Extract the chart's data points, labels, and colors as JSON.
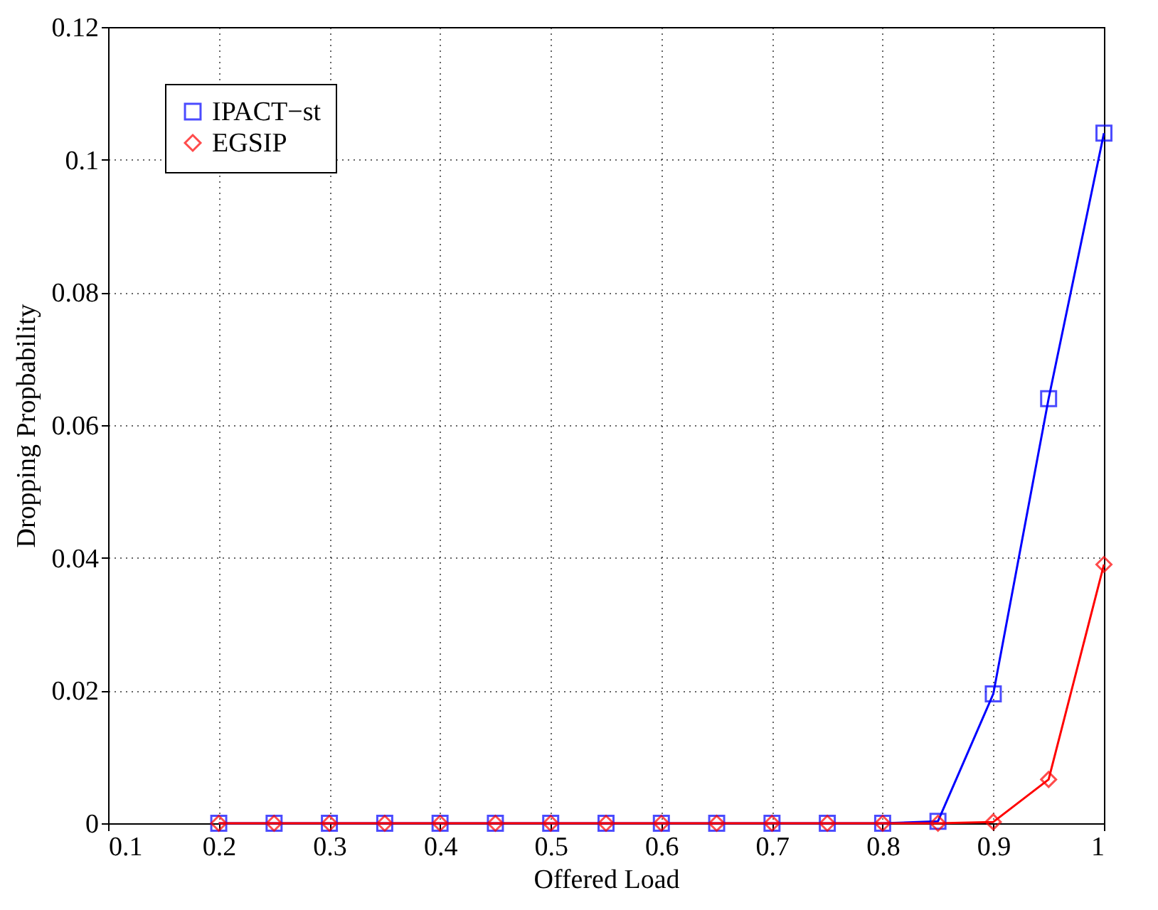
{
  "chart_data": {
    "type": "line",
    "xlabel": "Offered Load",
    "ylabel": "Dropping Propbability",
    "x": [
      0.2,
      0.25,
      0.3,
      0.35,
      0.4,
      0.45,
      0.5,
      0.55,
      0.6,
      0.65,
      0.7,
      0.75,
      0.8,
      0.85,
      0.9,
      0.95,
      1
    ],
    "series": [
      {
        "name": "IPACT−st",
        "color": "#0000ff",
        "marker": "square",
        "values": [
          0,
          0,
          0,
          0,
          0,
          0,
          0,
          0,
          0,
          0,
          0,
          0,
          0,
          0.0003,
          0.0195,
          0.064,
          0.104
        ]
      },
      {
        "name": "EGSIP",
        "color": "#ff0000",
        "marker": "diamond",
        "values": [
          0,
          0,
          0,
          0,
          0,
          0,
          0,
          0,
          0,
          0,
          0,
          0,
          0,
          0,
          0.0002,
          0.0066,
          0.039
        ]
      }
    ],
    "xlim": [
      0.1,
      1
    ],
    "xticks": [
      0.1,
      0.2,
      0.3,
      0.4,
      0.5,
      0.6,
      0.7,
      0.8,
      0.9,
      1
    ],
    "ylim": [
      0,
      0.12
    ],
    "yticks": [
      0,
      0.02,
      0.04,
      0.06,
      0.08,
      0.1,
      0.12
    ],
    "grid": true,
    "legend": "top left",
    "line_style": "solid"
  }
}
